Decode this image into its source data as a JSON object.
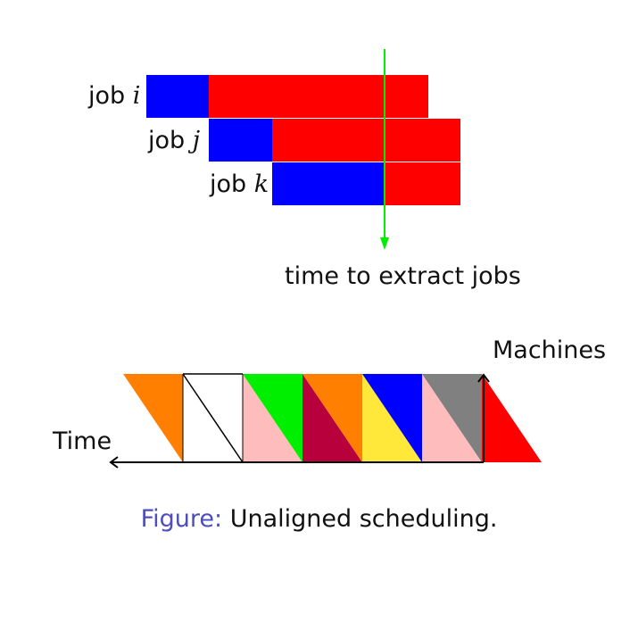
{
  "colors": {
    "blue": "#0000ff",
    "red": "#ff0000",
    "green": "#00ee00",
    "orange": "#ff8000",
    "pink": "#ffbcbc",
    "white": "#ffffff",
    "crimson": "#b8003c",
    "yellow": "#ffe83a",
    "gray": "#808080",
    "caption_accent": "#4d4dbf"
  },
  "jobs_diagram": {
    "jobs": [
      {
        "prefix": "job",
        "var": "i"
      },
      {
        "prefix": "job",
        "var": "j"
      },
      {
        "prefix": "job",
        "var": "k"
      }
    ],
    "extract_label": "time to extract jobs"
  },
  "schedule_diagram": {
    "axis_machines": "Machines",
    "axis_time": "Time",
    "slots": [
      {
        "top": "orange",
        "bottom": "white"
      },
      {
        "top": "white",
        "bottom": "pink"
      },
      {
        "top": "green",
        "bottom": "crimson"
      },
      {
        "top": "orange",
        "bottom": "yellow"
      },
      {
        "top": "blue",
        "bottom": "pink"
      },
      {
        "top": "gray",
        "bottom": "red"
      }
    ]
  },
  "caption": {
    "prefix": "Figure:",
    "text": " Unaligned scheduling."
  }
}
